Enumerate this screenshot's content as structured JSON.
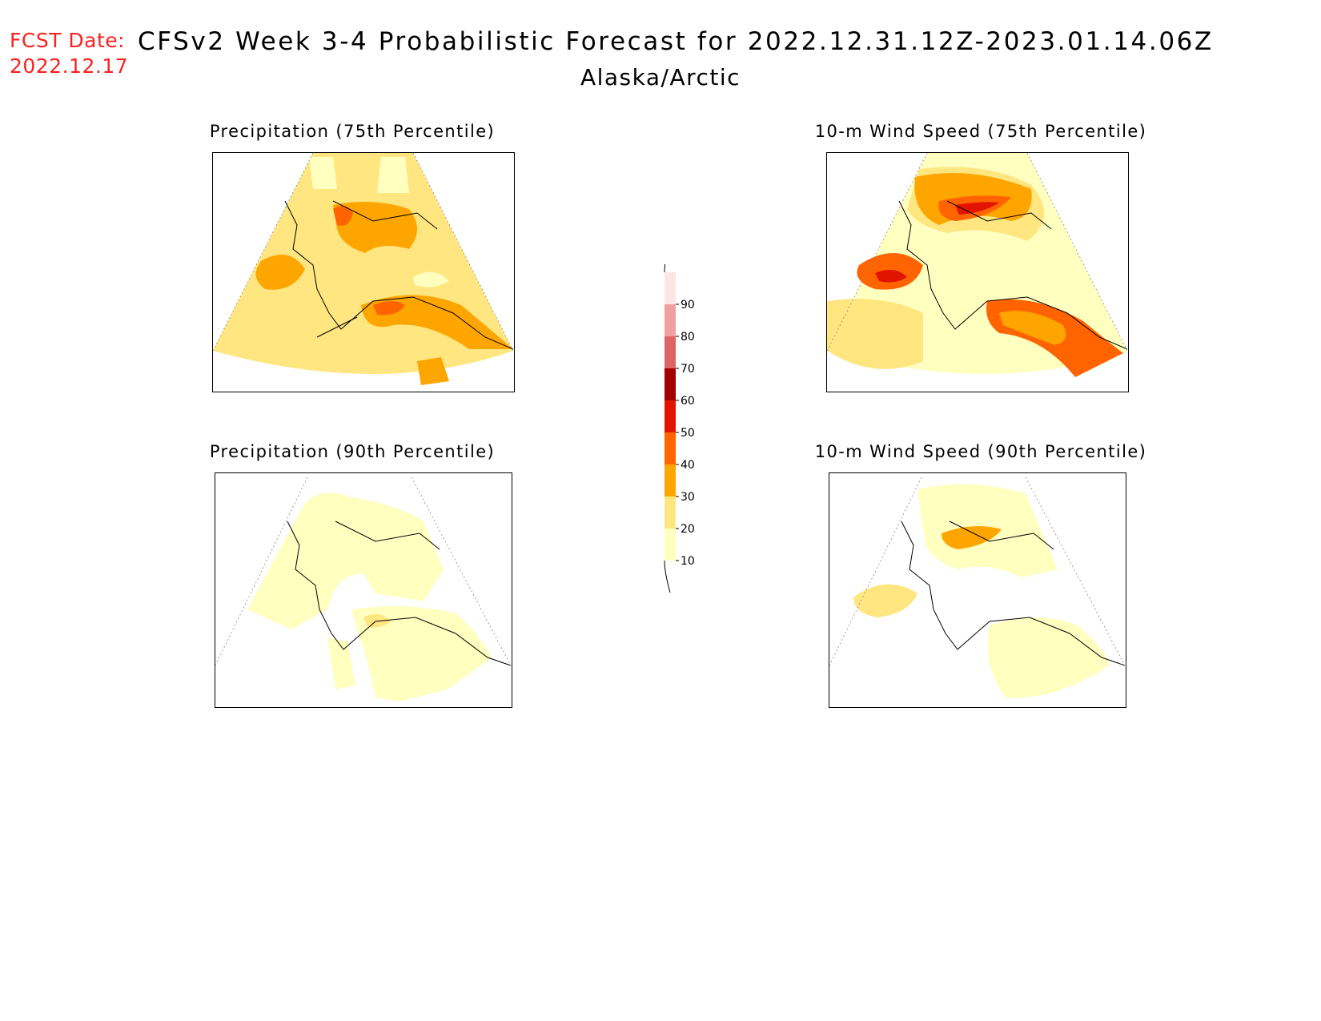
{
  "header": {
    "fcst_label": "FCST Date:",
    "fcst_date": "2022.12.17",
    "title": "CFSv2 Week 3-4 Probabilistic Forecast for 2022.12.31.12Z-2023.01.14.06Z",
    "region": "Alaska/Arctic"
  },
  "panels": [
    {
      "title": "Precipitation (75th Percentile)"
    },
    {
      "title": "10-m Wind Speed (75th Percentile)"
    },
    {
      "title": "Precipitation (90th Percentile)"
    },
    {
      "title": "10-m Wind Speed (90th Percentile)"
    }
  ],
  "colorbar": {
    "levels": [
      "10",
      "20",
      "30",
      "40",
      "50",
      "60",
      "70",
      "80",
      "90"
    ],
    "colors": [
      "#ffffc0",
      "#ffe680",
      "#ffa500",
      "#ff6400",
      "#e11400",
      "#a50000",
      "#dc6464",
      "#f0a0a0",
      "#ffe4e4"
    ]
  }
}
